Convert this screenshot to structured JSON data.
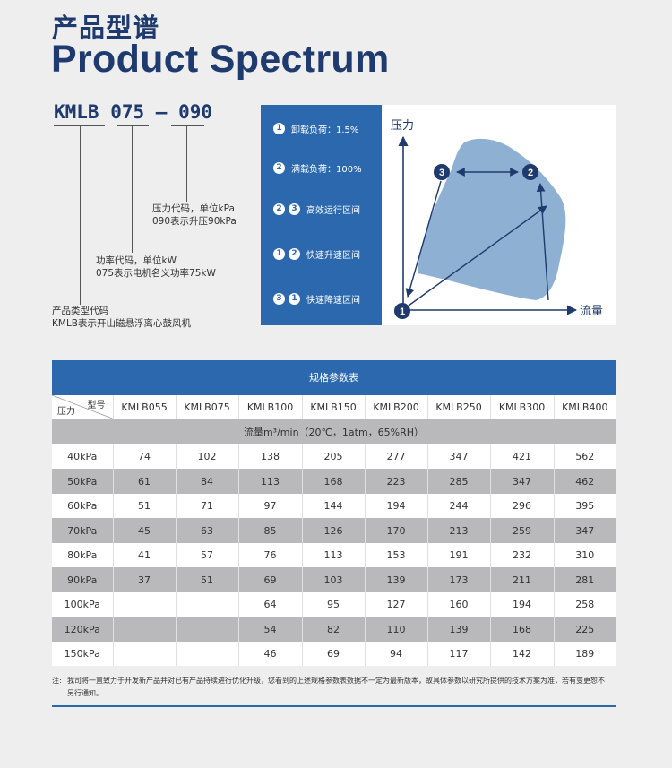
{
  "header": {
    "title_cn": "产品型谱",
    "title_en": "Product Spectrum"
  },
  "model_code": {
    "text": "KMLB 075 – 090",
    "parts": {
      "type": "KMLB",
      "power": "075",
      "pressure": "090"
    },
    "annotations": {
      "pressure_line1": "压力代码，单位kPa",
      "pressure_line2": "090表示升压90kPa",
      "power_line1": "功率代码，单位kW",
      "power_line2": "075表示电机名义功率75kW",
      "type_line1": "产品类型代码",
      "type_line2": "KMLB表示开山磁悬浮离心鼓风机"
    }
  },
  "legend": {
    "items": [
      {
        "badges": [
          "1"
        ],
        "text": "卸载负荷：1.5%"
      },
      {
        "badges": [
          "2"
        ],
        "text": "满载负荷：100%"
      },
      {
        "badges": [
          "2",
          "3"
        ],
        "text": "高效运行区间"
      },
      {
        "badges": [
          "1",
          "2"
        ],
        "text": "快速升速区间"
      },
      {
        "badges": [
          "3",
          "1"
        ],
        "text": "快速降速区间"
      }
    ]
  },
  "diagram": {
    "y_label": "压力",
    "x_label": "流量",
    "points": [
      "1",
      "2",
      "3"
    ],
    "colors": {
      "region": "#8eb1d3",
      "axis": "#1f3a6e",
      "point": "#1f3a6e"
    }
  },
  "table": {
    "title": "规格参数表",
    "corner_top": "型号",
    "corner_bottom": "压力",
    "models": [
      "KMLB055",
      "KMLB075",
      "KMLB100",
      "KMLB150",
      "KMLB200",
      "KMLB250",
      "KMLB300",
      "KMLB400"
    ],
    "flow_label": "流量m³/min（20℃，1atm，65%RH）",
    "rows": [
      {
        "pressure": "40kPa",
        "values": [
          "74",
          "102",
          "138",
          "205",
          "277",
          "347",
          "421",
          "562"
        ]
      },
      {
        "pressure": "50kPa",
        "values": [
          "61",
          "84",
          "113",
          "168",
          "223",
          "285",
          "347",
          "462"
        ]
      },
      {
        "pressure": "60kPa",
        "values": [
          "51",
          "71",
          "97",
          "144",
          "194",
          "244",
          "296",
          "395"
        ]
      },
      {
        "pressure": "70kPa",
        "values": [
          "45",
          "63",
          "85",
          "126",
          "170",
          "213",
          "259",
          "347"
        ]
      },
      {
        "pressure": "80kPa",
        "values": [
          "41",
          "57",
          "76",
          "113",
          "153",
          "191",
          "232",
          "310"
        ]
      },
      {
        "pressure": "90kPa",
        "values": [
          "37",
          "51",
          "69",
          "103",
          "139",
          "173",
          "211",
          "281"
        ]
      },
      {
        "pressure": "100kPa",
        "values": [
          "",
          "",
          "64",
          "95",
          "127",
          "160",
          "194",
          "258"
        ]
      },
      {
        "pressure": "120kPa",
        "values": [
          "",
          "",
          "54",
          "82",
          "110",
          "139",
          "168",
          "225"
        ]
      },
      {
        "pressure": "150kPa",
        "values": [
          "",
          "",
          "46",
          "69",
          "94",
          "117",
          "142",
          "189"
        ]
      }
    ]
  },
  "note": {
    "label": "注:",
    "text": "我司将一直致力于开发新产品并对已有产品持续进行优化升级，您看到的上述规格参数表数据不一定为最新版本，故具体参数以研究所提供的技术方案为准，若有变更恕不另行通知。"
  },
  "colors": {
    "brand": "#1f3a6e",
    "accent": "#2c68ad",
    "row_shade": "#b9b9bb"
  }
}
